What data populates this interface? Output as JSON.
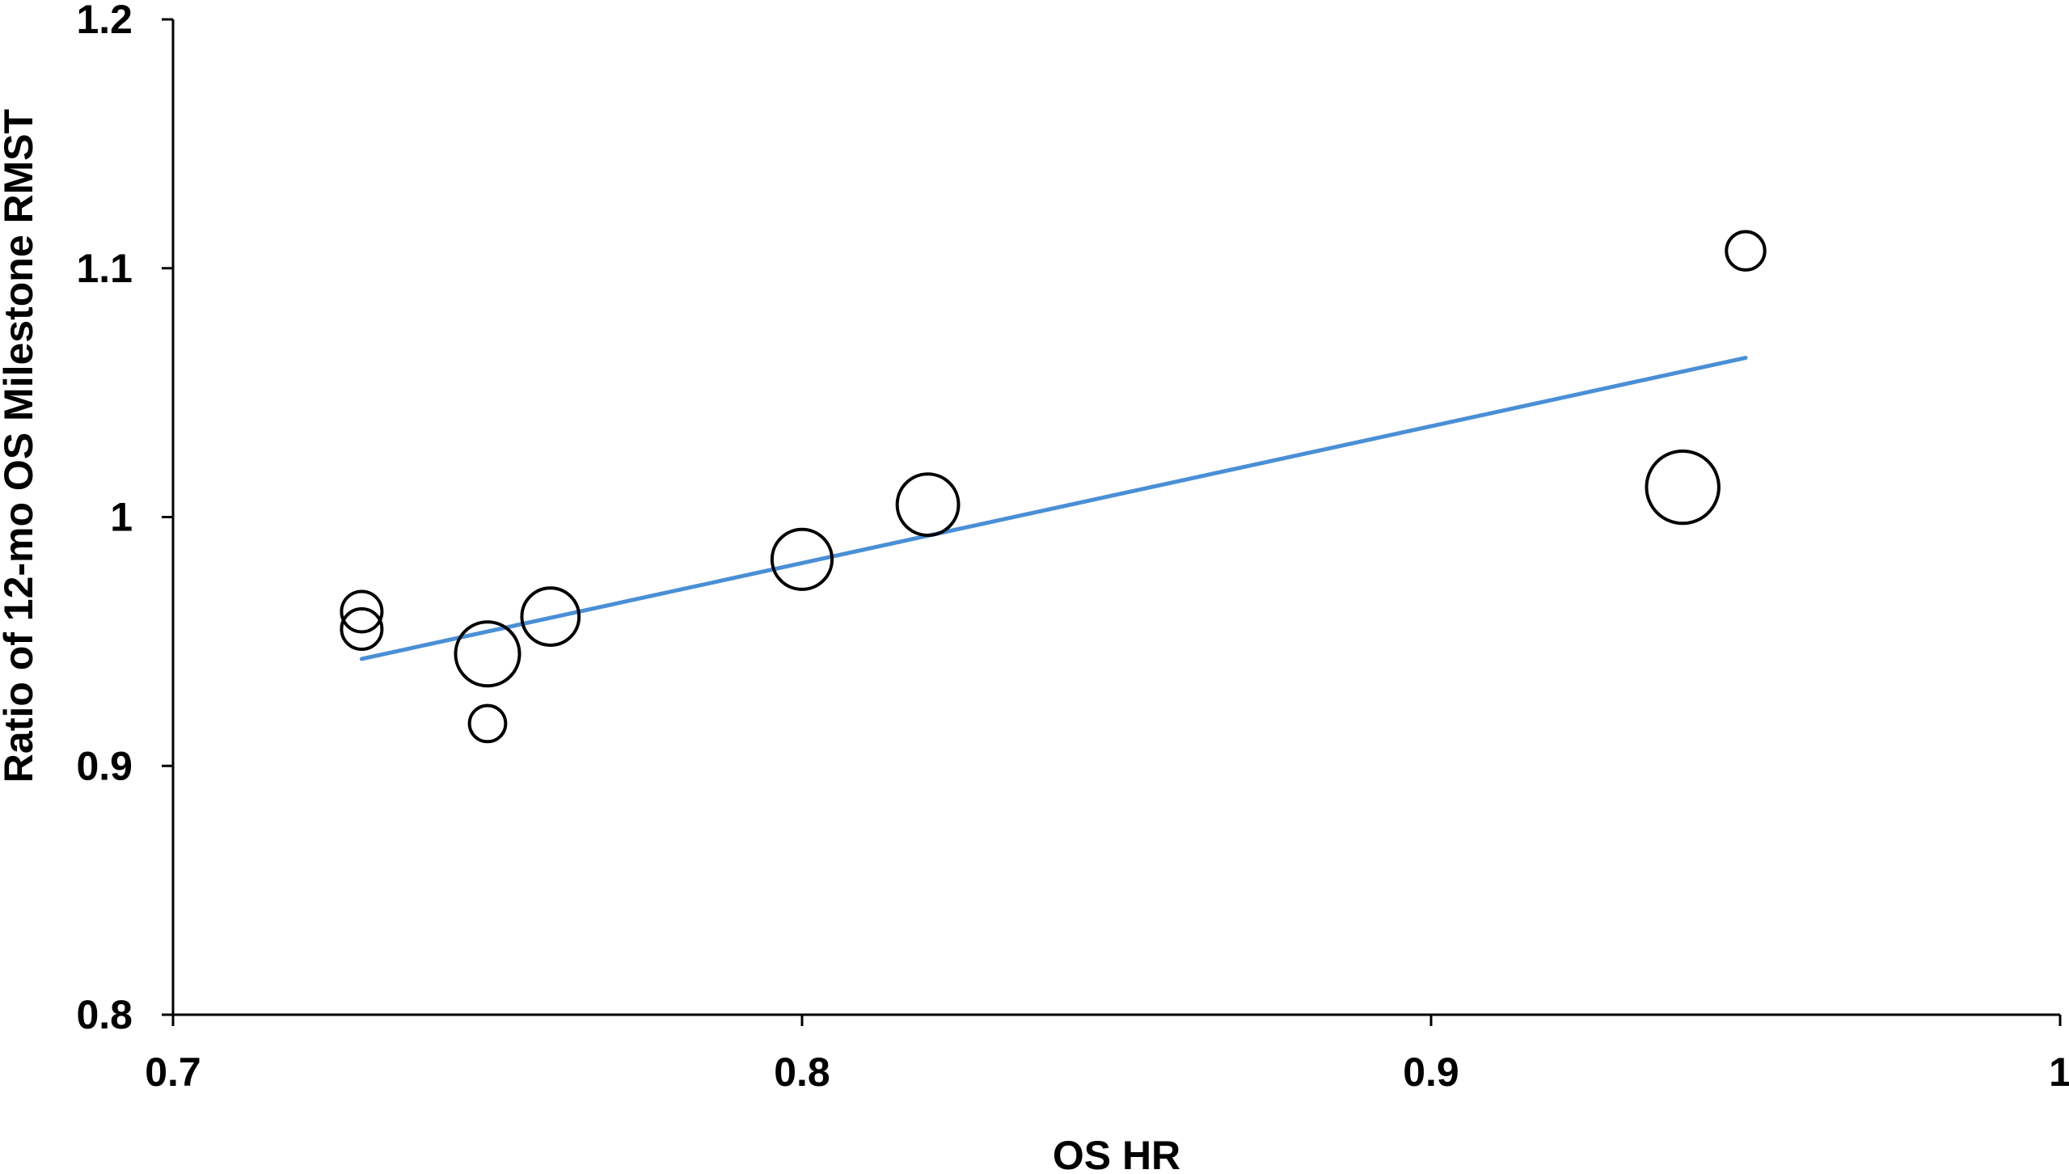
{
  "chart_data": {
    "type": "scatter",
    "title": "",
    "xlabel": "OS HR",
    "ylabel": "Ratio of 12-mo OS Milestone RMST",
    "xlim": [
      0.7,
      1.0
    ],
    "ylim": [
      0.8,
      1.2
    ],
    "x_ticks": [
      "0.7",
      "0.8",
      "0.9",
      "1"
    ],
    "y_ticks": [
      "0.8",
      "0.9",
      "1",
      "1.1",
      "1.2"
    ],
    "grid": false,
    "legend": "none",
    "series": [
      {
        "marker": "open-circle",
        "color": "#000000",
        "points": [
          {
            "x": 0.73,
            "y": 0.955,
            "size": 1
          },
          {
            "x": 0.73,
            "y": 0.962,
            "size": 1
          },
          {
            "x": 0.75,
            "y": 0.917,
            "size": 0.8
          },
          {
            "x": 0.75,
            "y": 0.945,
            "size": 2.5
          },
          {
            "x": 0.76,
            "y": 0.96,
            "size": 2
          },
          {
            "x": 0.8,
            "y": 0.983,
            "size": 2.2
          },
          {
            "x": 0.82,
            "y": 1.005,
            "size": 2.3
          },
          {
            "x": 0.94,
            "y": 1.012,
            "size": 3.2
          },
          {
            "x": 0.95,
            "y": 1.107,
            "size": 0.9
          }
        ]
      }
    ],
    "trendline": {
      "type": "linear",
      "color": "#4a8fd6",
      "x": [
        0.73,
        0.95
      ],
      "y": [
        0.943,
        1.064
      ]
    }
  }
}
